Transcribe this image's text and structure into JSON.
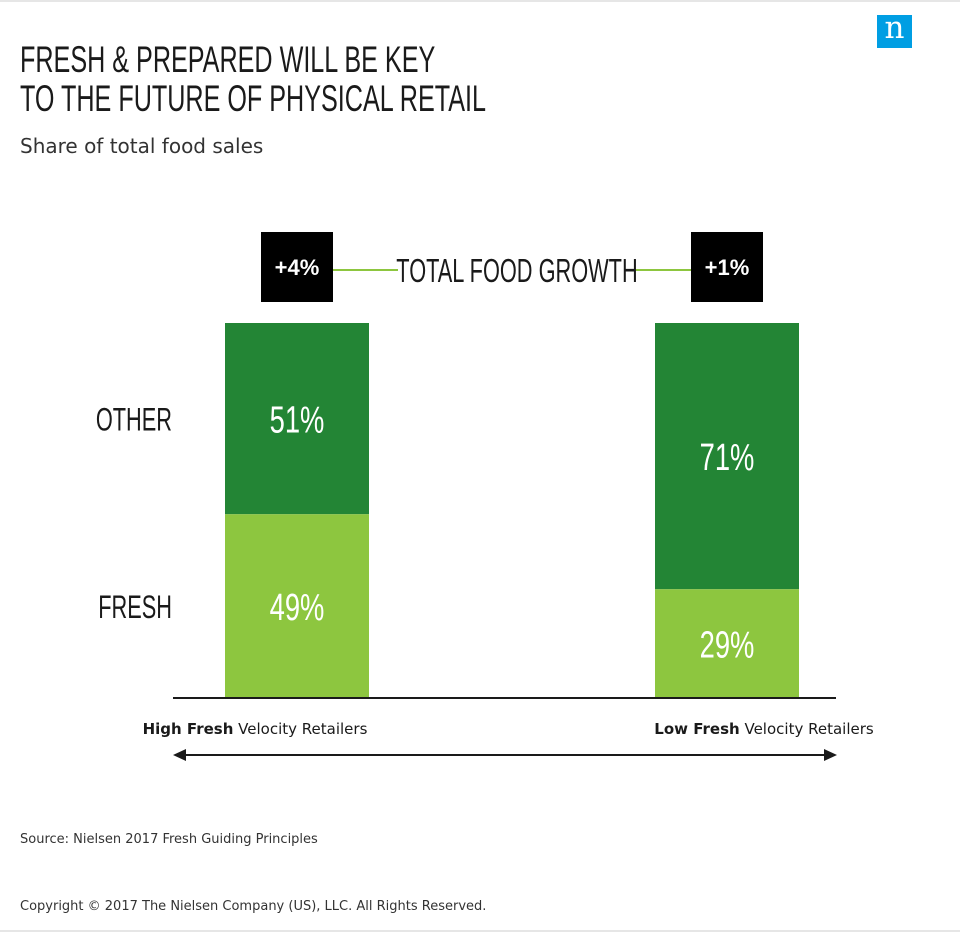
{
  "header": {
    "title_line1": "FRESH & PREPARED WILL BE KEY",
    "title_line2": "TO THE FUTURE OF PHYSICAL RETAIL",
    "subtitle": "Share of total food sales",
    "logo_letter": "n"
  },
  "growth": {
    "label": "TOTAL FOOD GROWTH",
    "left_value": "+4%",
    "right_value": "+1%"
  },
  "footer": {
    "source": "Source: Nielsen 2017 Fresh Guiding Principles",
    "copyright": "Copyright © 2017 The Nielsen Company (US), LLC. All Rights Reserved."
  },
  "colors": {
    "other": "#238535",
    "fresh": "#8dc63f",
    "badge": "#000000",
    "connector": "#8dc63f",
    "logo": "#009ee3"
  },
  "chart_data": {
    "type": "bar",
    "stacked": true,
    "categories": [
      {
        "bold": "High Fresh",
        "rest": " Velocity Retailers"
      },
      {
        "bold": "Low Fresh",
        "rest": " Velocity Retailers"
      }
    ],
    "series": [
      {
        "name": "FRESH",
        "values": [
          49,
          29
        ],
        "labels": [
          "49%",
          "29%"
        ]
      },
      {
        "name": "OTHER",
        "values": [
          51,
          71
        ],
        "labels": [
          "51%",
          "71%"
        ]
      }
    ],
    "ylim": [
      0,
      100
    ],
    "grid": false
  }
}
